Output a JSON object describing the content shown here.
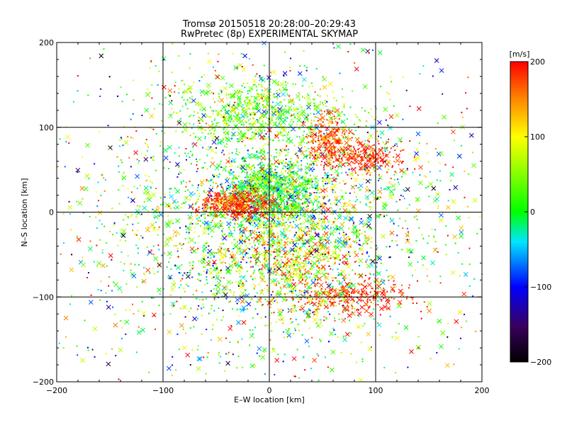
{
  "chart_data": {
    "type": "scatter",
    "title": "Tromsø 20150518 20:28:00–20:29:43",
    "subtitle": "RwPretec (8p) EXPERIMENTAL SKYMAP",
    "xlabel": "E–W location [km]",
    "ylabel": "N–S location [km]",
    "xlim": [
      -200,
      200
    ],
    "ylim": [
      -200,
      200
    ],
    "x_ticks": [
      "−200",
      "−100",
      "0",
      "100",
      "200"
    ],
    "y_ticks": [
      "−200",
      "−100",
      "0",
      "100",
      "200"
    ],
    "grid": true,
    "grid_values": [
      -100,
      0,
      100
    ],
    "markers": [
      "dot",
      "cross"
    ],
    "colorbar": {
      "label": "[m/s]",
      "range": [
        -200,
        200
      ],
      "ticks": [
        "−200",
        "−100",
        "0",
        "100",
        "200"
      ],
      "colormap": "rainbow"
    },
    "clusters": [
      {
        "x": 0,
        "y": -10,
        "sx": 75,
        "sy": 75,
        "v": 20,
        "sv": 80,
        "n": 2600
      },
      {
        "x": 0,
        "y": 25,
        "sx": 22,
        "sy": 18,
        "v": 10,
        "sv": 60,
        "n": 850
      },
      {
        "x": -30,
        "y": 10,
        "sx": 18,
        "sy": 8,
        "v": 180,
        "sv": 25,
        "n": 420
      },
      {
        "x": -10,
        "y": 120,
        "sx": 38,
        "sy": 18,
        "v": 40,
        "sv": 40,
        "n": 520
      },
      {
        "x": 55,
        "y": 90,
        "sx": 10,
        "sy": 12,
        "v": 170,
        "sv": 25,
        "n": 200
      },
      {
        "x": 85,
        "y": 65,
        "sx": 20,
        "sy": 9,
        "v": 185,
        "sv": 20,
        "n": 280
      },
      {
        "x": 75,
        "y": -100,
        "sx": 32,
        "sy": 10,
        "v": 185,
        "sv": 20,
        "n": 280
      },
      {
        "x": 20,
        "y": -50,
        "sx": 30,
        "sy": 30,
        "v": 110,
        "sv": 60,
        "n": 520
      },
      {
        "x": 0,
        "y": 0,
        "sx": 140,
        "sy": 120,
        "v": 60,
        "sv": 120,
        "n": 1000
      }
    ]
  }
}
